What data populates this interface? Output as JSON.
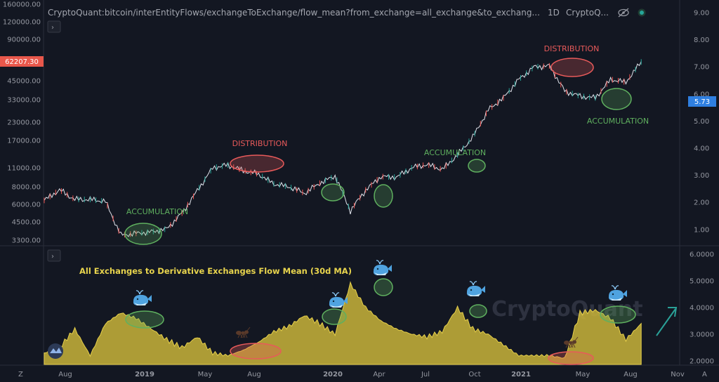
{
  "header": {
    "symbol_title": "CryptoQuant:bitcoin/interEntityFlows/exchangeToExchange/flow_mean?from_exchange=all_exchange&to_exchang...",
    "interval": "1D",
    "source": "CryptoQ...",
    "collapse_glyph": "›",
    "eye_icon": "eye-off-icon",
    "dot_icon": "green-dot-icon"
  },
  "colors": {
    "background": "#131722",
    "price_line": "#e0e3eb",
    "flow_fill": "#c9b43a",
    "distribution": "#e85a5a",
    "accumulation": "#5fb05f",
    "price_tag": "#e8574b",
    "value_tag": "#2f7fe0",
    "low_title": "#e8d44d",
    "arrow": "#2aa198"
  },
  "upper_pane": {
    "left_axis_ticks": [
      "160000.00",
      "120000.00",
      "90000.00",
      "62207.30",
      "45000.00",
      "33000.00",
      "23000.00",
      "17000.00",
      "11000.00",
      "8000.00",
      "6000.00",
      "4500.00",
      "3300.00"
    ],
    "right_axis_ticks": [
      "9.00",
      "8.00",
      "7.00",
      "6.00",
      "5.73",
      "5.00",
      "4.00",
      "3.00",
      "2.00",
      "1.00"
    ],
    "current_price_label": "62207.30",
    "current_value_label": "5.73",
    "annotations": [
      {
        "text": "ACCUMULATION",
        "kind": "accumulation"
      },
      {
        "text": "DISTRIBUTION",
        "kind": "distribution"
      },
      {
        "text": "ACCUMULATION",
        "kind": "accumulation"
      },
      {
        "text": "DISTRIBUTION",
        "kind": "distribution"
      },
      {
        "text": "ACCUMULATION",
        "kind": "accumulation"
      }
    ]
  },
  "lower_pane": {
    "title": "All Exchanges to Derivative Exchanges Flow Mean (30d MA)",
    "right_axis_ticks": [
      "6.0000",
      "5.0000",
      "4.0000",
      "3.0000",
      "2.0000"
    ],
    "watermark": "CryptoQuant"
  },
  "time_axis": {
    "labels": [
      "Aug",
      "2019",
      "May",
      "Aug",
      "2020",
      "Apr",
      "Jul",
      "Oct",
      "2021",
      "May",
      "Aug",
      "Nov"
    ],
    "corner_left": "Z",
    "corner_right": "A"
  },
  "chart_data": [
    {
      "type": "line",
      "name": "price",
      "x": [
        "2018-07",
        "2018-08",
        "2018-09",
        "2018-10",
        "2018-11",
        "2018-12",
        "2019-01",
        "2019-02",
        "2019-03",
        "2019-04",
        "2019-05",
        "2019-06",
        "2019-07",
        "2019-08",
        "2019-09",
        "2019-10",
        "2019-11",
        "2019-12",
        "2020-01",
        "2020-02",
        "2020-03",
        "2020-04",
        "2020-05",
        "2020-06",
        "2020-07",
        "2020-08",
        "2020-09",
        "2020-10",
        "2020-11",
        "2020-12",
        "2021-01",
        "2021-02",
        "2021-03",
        "2021-04",
        "2021-05",
        "2021-06",
        "2021-07",
        "2021-08",
        "2021-09",
        "2021-10"
      ],
      "values": [
        6400,
        7600,
        6500,
        6500,
        6300,
        3600,
        3700,
        3800,
        4000,
        5200,
        7500,
        11000,
        11500,
        10500,
        9900,
        8400,
        8000,
        7200,
        8500,
        9600,
        5400,
        7600,
        9500,
        9400,
        11000,
        11600,
        10700,
        13500,
        18000,
        28000,
        34000,
        46000,
        57000,
        58000,
        38000,
        35000,
        34000,
        46000,
        44000,
        62000
      ],
      "yscale": "log",
      "ylim": [
        3000,
        160000
      ]
    },
    {
      "type": "area",
      "name": "flow_mean",
      "title": "All Exchanges to Derivative Exchanges Flow Mean (30d MA)",
      "x": [
        "2018-07",
        "2018-08",
        "2018-09",
        "2018-10",
        "2018-11",
        "2018-12",
        "2019-01",
        "2019-02",
        "2019-03",
        "2019-04",
        "2019-05",
        "2019-06",
        "2019-07",
        "2019-08",
        "2019-09",
        "2019-10",
        "2019-11",
        "2019-12",
        "2020-01",
        "2020-02",
        "2020-03",
        "2020-04",
        "2020-05",
        "2020-06",
        "2020-07",
        "2020-08",
        "2020-09",
        "2020-10",
        "2020-11",
        "2020-12",
        "2021-01",
        "2021-02",
        "2021-03",
        "2021-04",
        "2021-05",
        "2021-06",
        "2021-07",
        "2021-08",
        "2021-09",
        "2021-10"
      ],
      "values": [
        2.3,
        2.5,
        3.2,
        2.2,
        3.4,
        3.8,
        3.6,
        3.2,
        2.8,
        2.5,
        2.9,
        2.3,
        2.2,
        2.4,
        2.7,
        3.1,
        3.3,
        3.7,
        3.4,
        3.0,
        4.9,
        4.0,
        3.5,
        3.2,
        3.0,
        2.9,
        3.1,
        4.0,
        3.2,
        3.0,
        2.6,
        2.2,
        2.2,
        2.2,
        2.1,
        3.8,
        3.9,
        3.6,
        2.8,
        3.4
      ],
      "ylim": [
        2.0,
        6.0
      ]
    }
  ]
}
